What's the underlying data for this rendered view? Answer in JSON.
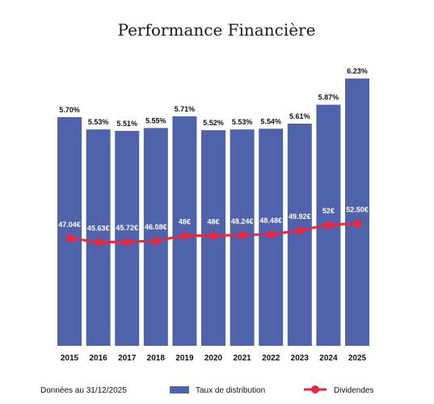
{
  "chart_data": {
    "type": "bar",
    "title": "Performance Financière",
    "categories": [
      "2015",
      "2016",
      "2017",
      "2018",
      "2019",
      "2020",
      "2021",
      "2022",
      "2023",
      "2024",
      "2025"
    ],
    "series": [
      {
        "name": "Taux de distribution",
        "type": "bar",
        "values": [
          5.7,
          5.53,
          5.51,
          5.55,
          5.71,
          5.52,
          5.53,
          5.54,
          5.61,
          5.87,
          6.23
        ],
        "labels": [
          "5.70%",
          "5.53%",
          "5.51%",
          "5.55%",
          "5.71%",
          "5.52%",
          "5.53%",
          "5.54%",
          "5.61%",
          "5.87%",
          "6.23%"
        ],
        "color": "#4f62ac"
      },
      {
        "name": "Dividendes",
        "type": "line",
        "values": [
          47.04,
          45.63,
          45.72,
          46.08,
          48,
          48,
          48.24,
          48.48,
          49.92,
          52,
          52.5
        ],
        "labels": [
          "47.04€",
          "45.63€",
          "45.72€",
          "46.08€",
          "48€",
          "48€",
          "48.24€",
          "48.48€",
          "49.92€",
          "52€",
          "52.50€"
        ],
        "color": "#e8283f"
      }
    ],
    "legend_position": "bottom",
    "grid": false
  },
  "footer": {
    "note": "Données au 31/12/2025"
  }
}
